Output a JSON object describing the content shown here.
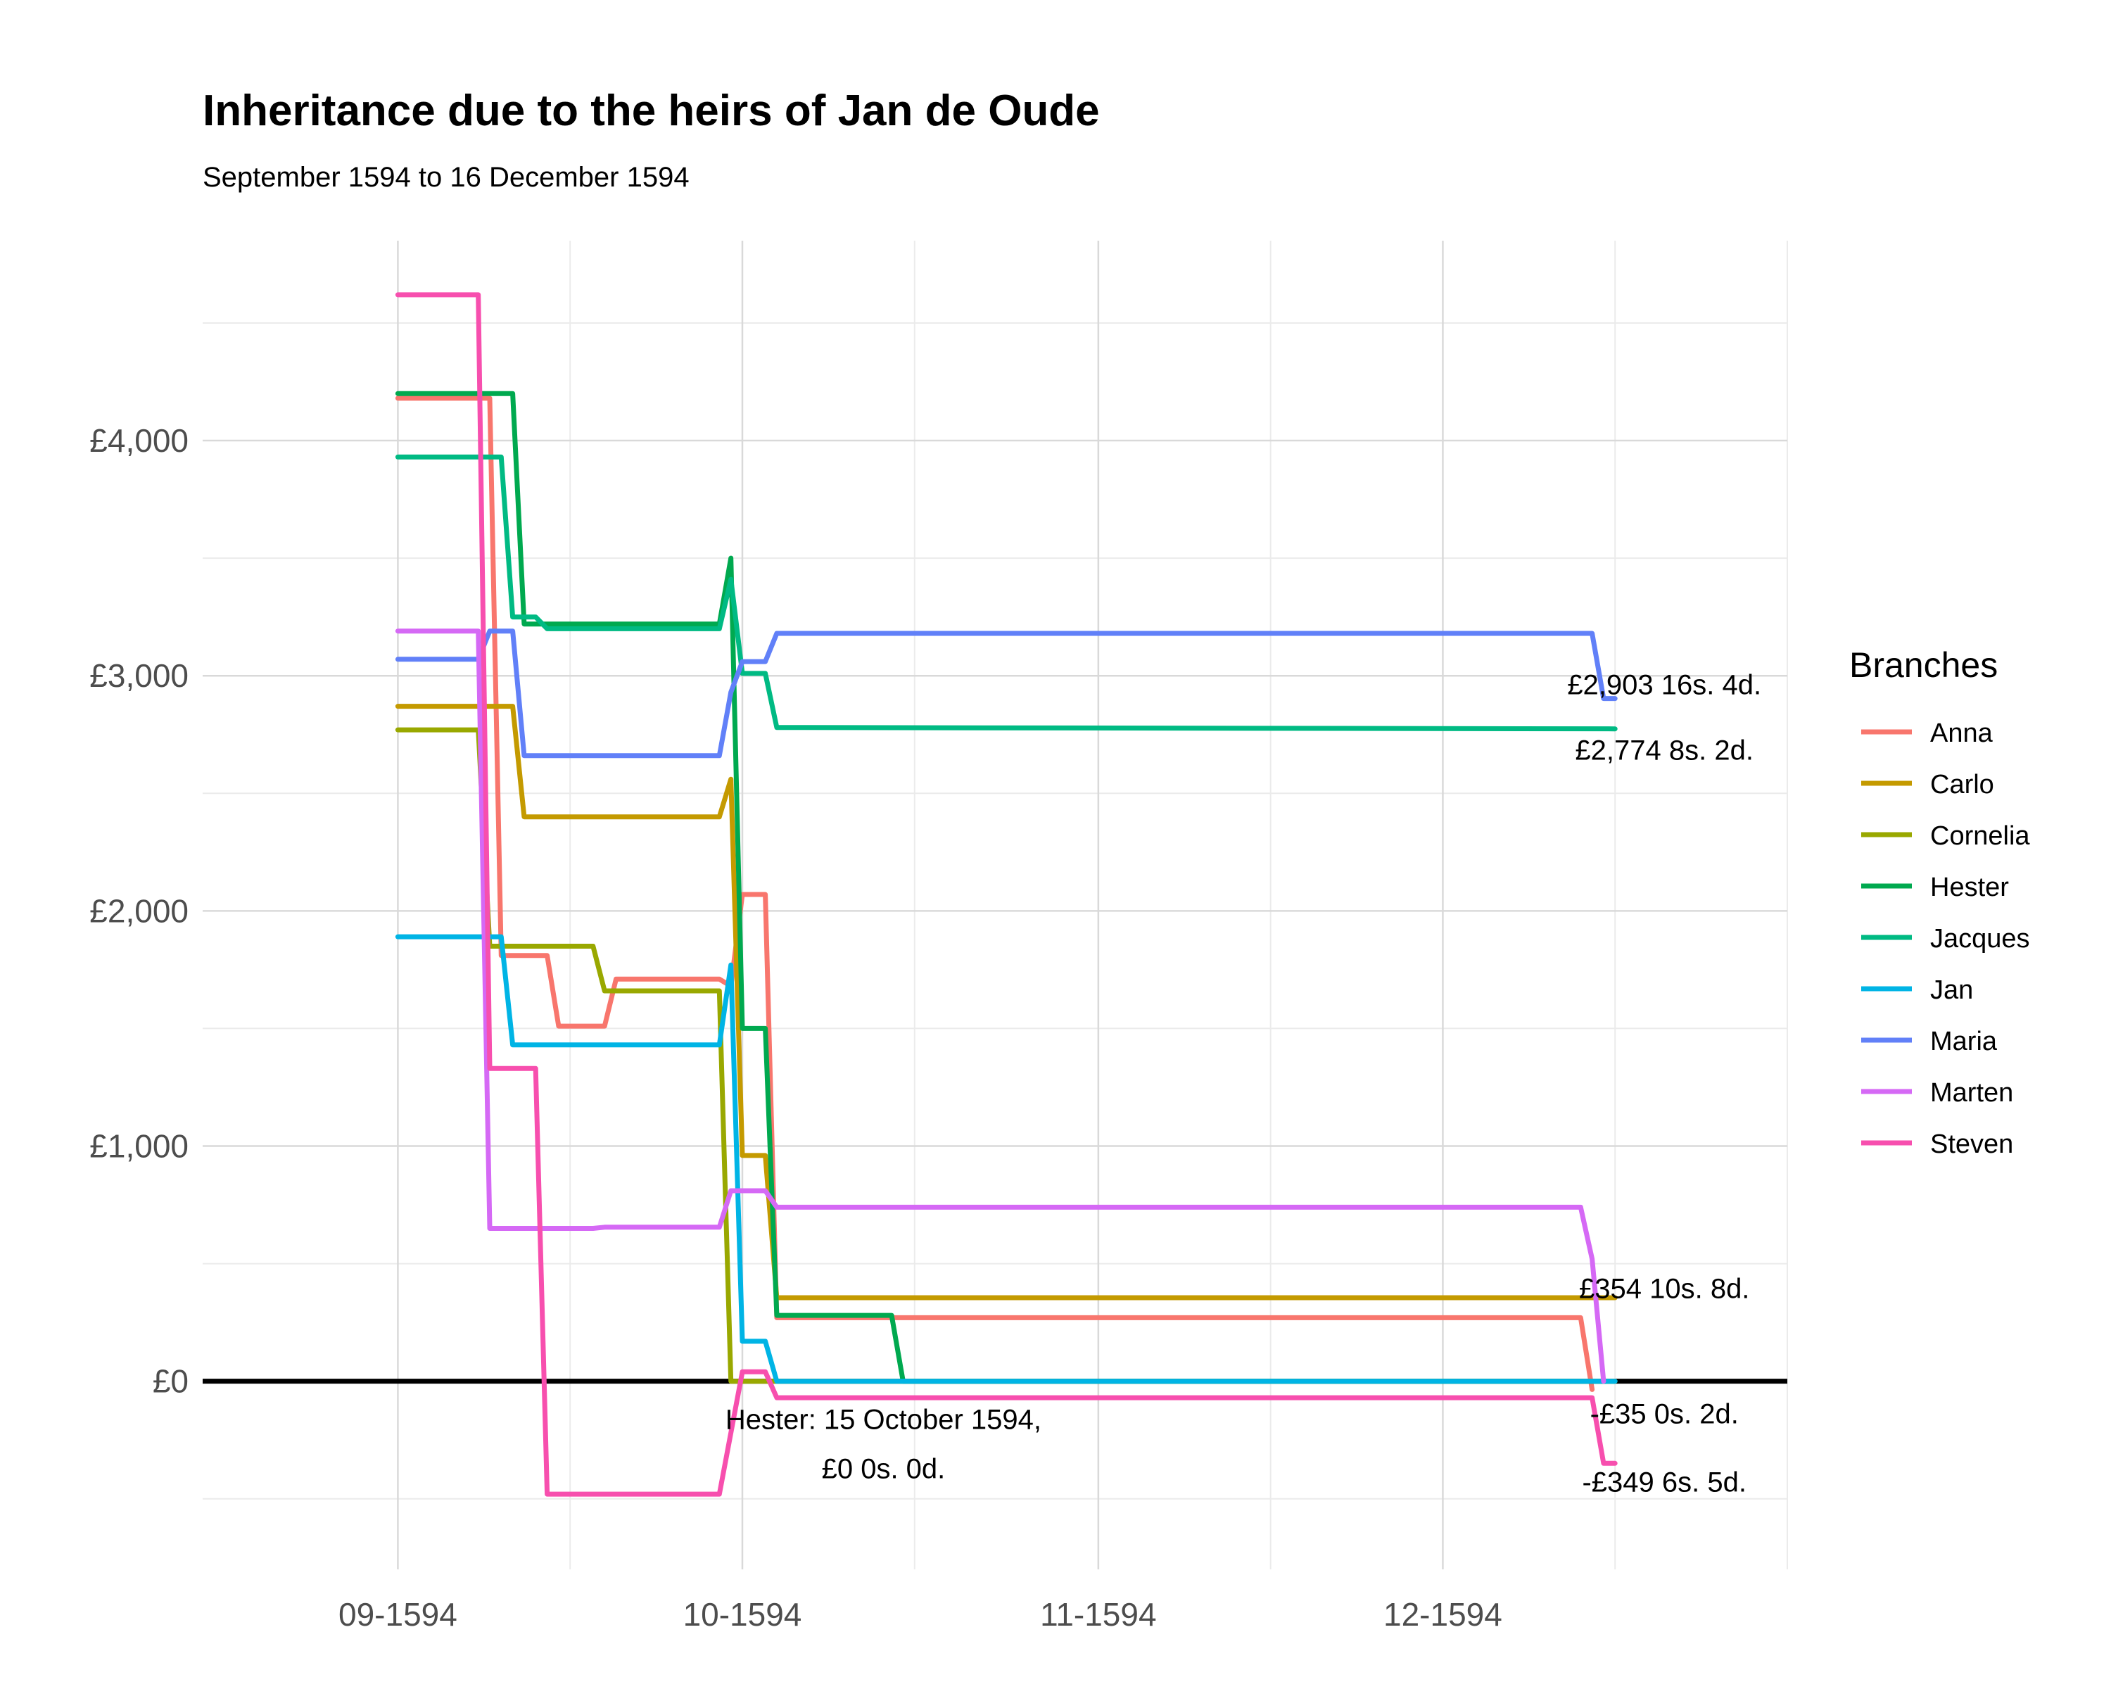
{
  "title": "Inheritance due to the heirs of Jan de Oude",
  "subtitle": "September 1594 to 16 December 1594",
  "legend_title": "Branches",
  "chart_data": {
    "type": "line",
    "title": "Inheritance due to the heirs of Jan de Oude",
    "subtitle": "September 1594 to 16 December 1594",
    "xlabel": "",
    "ylabel": "",
    "x_type": "date",
    "xlim": [
      "1594-08-15",
      "1594-12-31"
    ],
    "ylim": [
      -800,
      4850
    ],
    "x_ticks": [
      {
        "value": "1594-09-01",
        "label": "09-1594"
      },
      {
        "value": "1594-10-01",
        "label": "10-1594"
      },
      {
        "value": "1594-11-01",
        "label": "11-1594"
      },
      {
        "value": "1594-12-01",
        "label": "12-1594"
      }
    ],
    "x_minor_grid": [
      "1594-09-16",
      "1594-10-16",
      "1594-11-16",
      "1594-12-16",
      "1594-12-31"
    ],
    "y_ticks": [
      {
        "value": 0,
        "label": "£0"
      },
      {
        "value": 1000,
        "label": "£1,000"
      },
      {
        "value": 2000,
        "label": "£2,000"
      },
      {
        "value": 3000,
        "label": "£3,000"
      },
      {
        "value": 4000,
        "label": "£4,000"
      }
    ],
    "y_minor_grid": [
      -500,
      500,
      1500,
      2500,
      3500,
      4500
    ],
    "zero_line": 0,
    "grid": true,
    "legend_position": "right",
    "series": [
      {
        "name": "Anna",
        "color": "#F8766D",
        "points": [
          [
            "1594-09-01",
            4180
          ],
          [
            "1594-09-09",
            4180
          ],
          [
            "1594-09-10",
            1810
          ],
          [
            "1594-09-14",
            1810
          ],
          [
            "1594-09-15",
            1510
          ],
          [
            "1594-09-19",
            1510
          ],
          [
            "1594-09-20",
            1710
          ],
          [
            "1594-09-29",
            1710
          ],
          [
            "1594-09-30",
            1680
          ],
          [
            "1594-10-01",
            2070
          ],
          [
            "1594-10-03",
            2070
          ],
          [
            "1594-10-04",
            270
          ],
          [
            "1594-12-13",
            270
          ],
          [
            "1594-12-14",
            -35
          ]
        ]
      },
      {
        "name": "Carlo",
        "color": "#C49A00",
        "points": [
          [
            "1594-09-01",
            2870
          ],
          [
            "1594-09-11",
            2870
          ],
          [
            "1594-09-12",
            2400
          ],
          [
            "1594-09-29",
            2400
          ],
          [
            "1594-09-30",
            2560
          ],
          [
            "1594-10-01",
            960
          ],
          [
            "1594-10-03",
            960
          ],
          [
            "1594-10-04",
            355
          ],
          [
            "1594-12-16",
            355
          ]
        ]
      },
      {
        "name": "Cornelia",
        "color": "#99A800",
        "points": [
          [
            "1594-09-01",
            2770
          ],
          [
            "1594-09-08",
            2770
          ],
          [
            "1594-09-09",
            1850
          ],
          [
            "1594-09-18",
            1850
          ],
          [
            "1594-09-19",
            1660
          ],
          [
            "1594-09-29",
            1660
          ],
          [
            "1594-09-30",
            0
          ],
          [
            "1594-12-16",
            0
          ]
        ]
      },
      {
        "name": "Hester",
        "color": "#00A94F",
        "points": [
          [
            "1594-09-01",
            4200
          ],
          [
            "1594-09-11",
            4200
          ],
          [
            "1594-09-12",
            3220
          ],
          [
            "1594-09-29",
            3220
          ],
          [
            "1594-09-30",
            3500
          ],
          [
            "1594-10-01",
            1500
          ],
          [
            "1594-10-03",
            1500
          ],
          [
            "1594-10-04",
            280
          ],
          [
            "1594-10-14",
            280
          ],
          [
            "1594-10-15",
            0
          ],
          [
            "1594-12-16",
            0
          ]
        ]
      },
      {
        "name": "Jacques",
        "color": "#00BA83",
        "points": [
          [
            "1594-09-01",
            3930
          ],
          [
            "1594-09-10",
            3930
          ],
          [
            "1594-09-11",
            3250
          ],
          [
            "1594-09-13",
            3250
          ],
          [
            "1594-09-14",
            3200
          ],
          [
            "1594-09-29",
            3200
          ],
          [
            "1594-09-30",
            3410
          ],
          [
            "1594-10-01",
            3010
          ],
          [
            "1594-10-03",
            3010
          ],
          [
            "1594-10-04",
            2780
          ],
          [
            "1594-12-16",
            2774
          ]
        ]
      },
      {
        "name": "Jan",
        "color": "#00B4E5",
        "points": [
          [
            "1594-09-01",
            1890
          ],
          [
            "1594-09-10",
            1890
          ],
          [
            "1594-09-11",
            1430
          ],
          [
            "1594-09-29",
            1430
          ],
          [
            "1594-09-30",
            1770
          ],
          [
            "1594-10-01",
            170
          ],
          [
            "1594-10-03",
            170
          ],
          [
            "1594-10-04",
            0
          ],
          [
            "1594-12-16",
            0
          ]
        ]
      },
      {
        "name": "Maria",
        "color": "#6180F8",
        "points": [
          [
            "1594-09-01",
            3070
          ],
          [
            "1594-09-08",
            3070
          ],
          [
            "1594-09-09",
            3190
          ],
          [
            "1594-09-11",
            3190
          ],
          [
            "1594-09-12",
            2660
          ],
          [
            "1594-09-29",
            2660
          ],
          [
            "1594-09-30",
            2930
          ],
          [
            "1594-10-01",
            3060
          ],
          [
            "1594-10-03",
            3060
          ],
          [
            "1594-10-04",
            3180
          ],
          [
            "1594-12-14",
            3180
          ],
          [
            "1594-12-15",
            2903
          ],
          [
            "1594-12-16",
            2903
          ]
        ]
      },
      {
        "name": "Marten",
        "color": "#D569F5",
        "points": [
          [
            "1594-09-01",
            3190
          ],
          [
            "1594-09-08",
            3190
          ],
          [
            "1594-09-09",
            650
          ],
          [
            "1594-09-18",
            650
          ],
          [
            "1594-09-19",
            655
          ],
          [
            "1594-09-29",
            655
          ],
          [
            "1594-09-30",
            810
          ],
          [
            "1594-10-03",
            810
          ],
          [
            "1594-10-04",
            740
          ],
          [
            "1594-12-13",
            740
          ],
          [
            "1594-12-14",
            520
          ],
          [
            "1594-12-15",
            0
          ]
        ]
      },
      {
        "name": "Steven",
        "color": "#F74FAE",
        "points": [
          [
            "1594-09-01",
            4620
          ],
          [
            "1594-09-08",
            4620
          ],
          [
            "1594-09-09",
            1330
          ],
          [
            "1594-09-13",
            1330
          ],
          [
            "1594-09-14",
            -480
          ],
          [
            "1594-09-29",
            -480
          ],
          [
            "1594-10-01",
            40
          ],
          [
            "1594-10-03",
            40
          ],
          [
            "1594-10-04",
            -70
          ],
          [
            "1594-12-14",
            -70
          ],
          [
            "1594-12-15",
            -349
          ],
          [
            "1594-12-16",
            -349
          ]
        ]
      }
    ],
    "annotations": [
      {
        "text": "£2,903 16s. 4d.",
        "x": "1594-12-16",
        "y": 2903
      },
      {
        "text": "£2,774 8s. 2d.",
        "x": "1594-12-16",
        "y": 2774
      },
      {
        "text": "£354 10s. 8d.",
        "x": "1594-12-16",
        "y": 354
      },
      {
        "text": "-£35 0s. 2d.",
        "x": "1594-12-16",
        "y": -35
      },
      {
        "text": "-£349 6s. 5d.",
        "x": "1594-12-16",
        "y": -349
      },
      {
        "text": "Hester: 15 October 1594,",
        "x": "1594-10-15",
        "y": 0
      },
      {
        "text": "£0 0s. 0d.",
        "x": "1594-10-15",
        "y": 0
      }
    ]
  }
}
